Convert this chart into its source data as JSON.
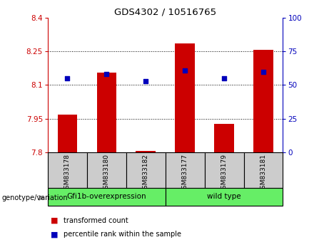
{
  "title": "GDS4302 / 10516765",
  "samples": [
    "GSM833178",
    "GSM833180",
    "GSM833182",
    "GSM833177",
    "GSM833179",
    "GSM833181"
  ],
  "red_values": [
    7.97,
    8.155,
    7.808,
    8.285,
    7.928,
    8.258
  ],
  "blue_values": [
    55,
    58,
    53,
    61,
    55,
    60
  ],
  "ylim_left": [
    7.8,
    8.4
  ],
  "ylim_right": [
    0,
    100
  ],
  "yticks_left": [
    7.8,
    7.95,
    8.1,
    8.25,
    8.4
  ],
  "yticks_right": [
    0,
    25,
    50,
    75,
    100
  ],
  "ytick_labels_left": [
    "7.8",
    "7.95",
    "8.1",
    "8.25",
    "8.4"
  ],
  "ytick_labels_right": [
    "0",
    "25",
    "50",
    "75",
    "100"
  ],
  "group_defs": [
    {
      "label": "Gfi1b-overexpression",
      "start": 0,
      "end": 2,
      "color": "#66EE66"
    },
    {
      "label": "wild type",
      "start": 3,
      "end": 5,
      "color": "#66EE66"
    }
  ],
  "bar_color": "#CC0000",
  "blue_color": "#0000BB",
  "bar_width": 0.5,
  "bar_bottom": 7.8,
  "grid_color": "#000000",
  "bg_color": "#FFFFFF",
  "sample_label_bg": "#CCCCCC",
  "legend_items": [
    "transformed count",
    "percentile rank within the sample"
  ],
  "legend_colors": [
    "#CC0000",
    "#0000BB"
  ],
  "xlabel_group": "genotype/variation"
}
